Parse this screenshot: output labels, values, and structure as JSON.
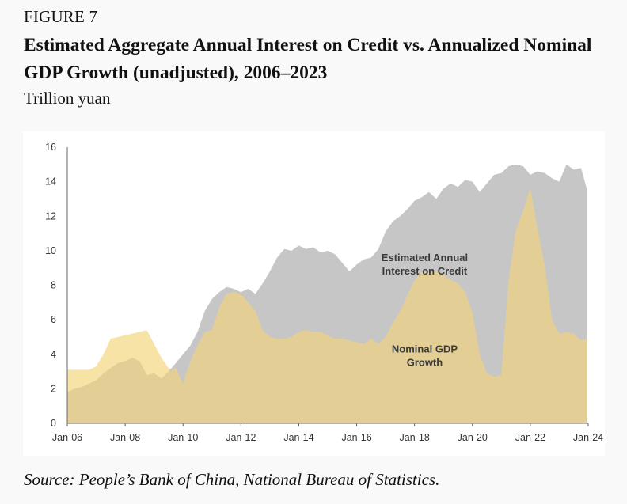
{
  "figure_label": "FIGURE 7",
  "title": "Estimated Aggregate Annual Interest on Credit vs. Annualized Nominal GDP Growth (unadjusted), 2006–2023",
  "unit_label": "Trillion yuan",
  "source": "Source: People’s Bank of China, National Bureau of Statistics.",
  "colors": {
    "interest": "#c6c6c6",
    "gdp": "#e3cf96",
    "gdp_light": "#f8e3a6",
    "axis": "#666666"
  },
  "chart_data": {
    "type": "area",
    "title": "",
    "xlabel": "",
    "ylabel": "",
    "xlim": [
      2006.0,
      2024.0
    ],
    "ylim": [
      0,
      16
    ],
    "grid": false,
    "x_ticks": [
      {
        "label": "Jan-06",
        "x": 2006
      },
      {
        "label": "Jan-08",
        "x": 2008
      },
      {
        "label": "Jan-10",
        "x": 2010
      },
      {
        "label": "Jan-12",
        "x": 2012
      },
      {
        "label": "Jan-14",
        "x": 2014
      },
      {
        "label": "Jan-16",
        "x": 2016
      },
      {
        "label": "Jan-18",
        "x": 2018
      },
      {
        "label": "Jan-20",
        "x": 2020
      },
      {
        "label": "Jan-22",
        "x": 2022
      },
      {
        "label": "Jan-24",
        "x": 2024
      }
    ],
    "y_ticks": [
      0,
      2,
      4,
      6,
      8,
      10,
      12,
      14,
      16
    ],
    "annotations": [
      {
        "lines": [
          "Estimated Annual",
          "Interest on Credit"
        ],
        "x": 2018.35,
        "y": 9.4
      },
      {
        "lines": [
          "Nominal GDP",
          "Growth"
        ],
        "x": 2018.35,
        "y": 4.1
      }
    ],
    "series": [
      {
        "name": "Estimated Annual Interest on Credit",
        "x": [
          2009.5,
          2009.75,
          2010.0,
          2010.25,
          2010.5,
          2010.75,
          2011.0,
          2011.25,
          2011.5,
          2011.75,
          2012.0,
          2012.25,
          2012.5,
          2012.75,
          2013.0,
          2013.25,
          2013.5,
          2013.75,
          2014.0,
          2014.25,
          2014.5,
          2014.75,
          2015.0,
          2015.25,
          2015.5,
          2015.75,
          2016.0,
          2016.25,
          2016.5,
          2016.75,
          2017.0,
          2017.25,
          2017.5,
          2017.75,
          2018.0,
          2018.25,
          2018.5,
          2018.75,
          2019.0,
          2019.25,
          2019.5,
          2019.75,
          2020.0,
          2020.25,
          2020.5,
          2020.75,
          2021.0,
          2021.25,
          2021.5,
          2021.75,
          2022.0,
          2022.25,
          2022.5,
          2022.75,
          2023.0,
          2023.25,
          2023.5,
          2023.75,
          2023.95
        ],
        "values": [
          3.0,
          3.5,
          4.0,
          4.5,
          5.3,
          6.5,
          7.2,
          7.6,
          7.9,
          7.8,
          7.6,
          7.8,
          7.5,
          8.1,
          8.8,
          9.6,
          10.1,
          10.0,
          10.3,
          10.1,
          10.2,
          9.9,
          10.0,
          9.8,
          9.3,
          8.8,
          9.2,
          9.5,
          9.6,
          10.1,
          11.1,
          11.7,
          12.0,
          12.4,
          12.9,
          13.1,
          13.4,
          13.0,
          13.6,
          13.9,
          13.7,
          14.1,
          14.0,
          13.4,
          13.9,
          14.4,
          14.5,
          14.9,
          15.0,
          14.9,
          14.4,
          14.6,
          14.5,
          14.2,
          14.0,
          15.0,
          14.7,
          14.8,
          13.6
        ]
      },
      {
        "name": "Nominal GDP Growth",
        "x": [
          2006.0,
          2006.25,
          2006.5,
          2006.75,
          2007.0,
          2007.25,
          2007.5,
          2007.75,
          2008.0,
          2008.25,
          2008.5,
          2008.75,
          2009.0,
          2009.25,
          2009.5,
          2009.75,
          2010.0,
          2010.25,
          2010.5,
          2010.75,
          2011.0,
          2011.25,
          2011.5,
          2011.75,
          2012.0,
          2012.25,
          2012.5,
          2012.75,
          2013.0,
          2013.25,
          2013.5,
          2013.75,
          2014.0,
          2014.25,
          2014.5,
          2014.75,
          2015.0,
          2015.25,
          2015.5,
          2015.75,
          2016.0,
          2016.25,
          2016.5,
          2016.75,
          2017.0,
          2017.25,
          2017.5,
          2017.75,
          2018.0,
          2018.25,
          2018.5,
          2018.75,
          2019.0,
          2019.25,
          2019.5,
          2019.75,
          2020.0,
          2020.25,
          2020.5,
          2020.75,
          2021.0,
          2021.25,
          2021.5,
          2021.75,
          2022.0,
          2022.25,
          2022.5,
          2022.75,
          2023.0,
          2023.25,
          2023.5,
          2023.75,
          2023.95
        ],
        "values": [
          1.8,
          2.0,
          2.1,
          2.3,
          2.5,
          2.9,
          3.2,
          3.5,
          3.6,
          3.8,
          3.6,
          2.8,
          2.9,
          2.6,
          3.0,
          3.2,
          2.3,
          3.6,
          4.5,
          5.3,
          5.4,
          6.7,
          7.5,
          7.6,
          7.5,
          7.0,
          6.5,
          5.4,
          5.0,
          4.9,
          4.9,
          5.0,
          5.3,
          5.4,
          5.3,
          5.3,
          5.1,
          4.9,
          4.9,
          4.8,
          4.7,
          4.6,
          4.9,
          4.6,
          5.0,
          5.8,
          6.5,
          7.4,
          8.3,
          8.8,
          8.7,
          8.8,
          8.6,
          8.3,
          8.1,
          7.6,
          6.4,
          4.0,
          2.9,
          2.7,
          2.8,
          8.3,
          11.2,
          12.3,
          13.6,
          11.3,
          9.1,
          6.0,
          5.2,
          5.3,
          5.2,
          4.8,
          4.9
        ]
      }
    ],
    "series_light_overhang": {
      "name": "Nominal GDP Growth (pre-2010 segment)",
      "x": [
        2006.0,
        2006.25,
        2006.5,
        2006.75,
        2007.0,
        2007.25,
        2007.5,
        2007.75,
        2008.0,
        2008.25,
        2008.5,
        2008.75,
        2009.0,
        2009.25,
        2009.5,
        2009.75,
        2010.0
      ],
      "values": [
        3.1,
        3.1,
        3.1,
        3.1,
        3.3,
        4.0,
        4.9,
        5.0,
        5.1,
        5.2,
        5.3,
        5.4,
        4.6,
        3.8,
        3.2,
        3.1,
        2.3
      ]
    }
  }
}
